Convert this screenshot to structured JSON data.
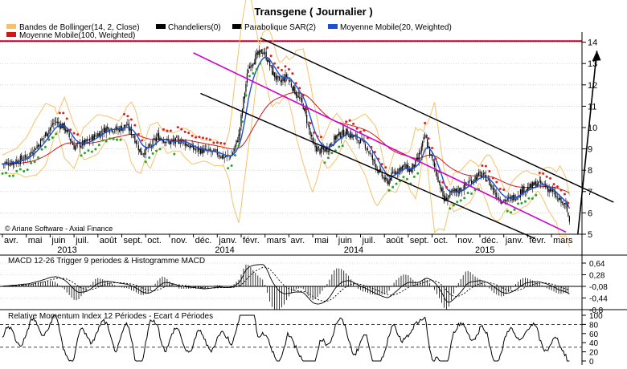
{
  "title": "Transgene  ( Journalier )",
  "copyright": "© Ariane Software - Axial Finance",
  "legend": [
    {
      "label": "Bandes de Bollinger(14, 2, Close)",
      "color": "#f5c26b"
    },
    {
      "label": "Chandeliers(0)",
      "color": "#000000"
    },
    {
      "label": "Parabolique SAR(2)",
      "color": "#000000"
    },
    {
      "label": "Moyenne Mobile(20, Weighted)",
      "color": "#1a4fd6"
    },
    {
      "label": "Moyenne Mobile(100, Weighted)",
      "color": "#d01818"
    }
  ],
  "colors": {
    "upper_band": "#f5c26b",
    "ma20": "#1a4fd6",
    "ma100": "#d01818",
    "sar_up": "#2aa22a",
    "sar_down": "#e02020",
    "trendline": "#000000",
    "midline": "#cc00cc",
    "resistance": "#c0002a"
  },
  "chart_data": [
    {
      "type": "candlestick",
      "name": "price",
      "y_ticks": [
        "14",
        "13",
        "12",
        "11",
        "10",
        "9",
        "8",
        "7",
        "6",
        "5"
      ],
      "ylim": [
        5,
        14
      ],
      "x_ticks": [
        "avr.",
        "mai",
        "juin",
        "juil.",
        "août",
        "sept.",
        "oct.",
        "nov.",
        "déc.",
        "janv.",
        "févr.",
        "mars",
        "avr.",
        "mai",
        "juin",
        "juil.",
        "août",
        "sept.",
        "oct.",
        "nov.",
        "déc.",
        "janv.",
        "févr.",
        "mars"
      ],
      "year_labels": [
        "2013",
        "2014",
        "2014",
        "2015"
      ],
      "close_path": [
        {
          "m": 0,
          "v": 8.3
        },
        {
          "m": 0.5,
          "v": 8.4
        },
        {
          "m": 1.0,
          "v": 8.6
        },
        {
          "m": 1.5,
          "v": 9.2
        },
        {
          "m": 2.2,
          "v": 10.3
        },
        {
          "m": 2.6,
          "v": 10.0
        },
        {
          "m": 3.0,
          "v": 9.1
        },
        {
          "m": 3.5,
          "v": 9.3
        },
        {
          "m": 4.0,
          "v": 9.7
        },
        {
          "m": 4.4,
          "v": 10.0
        },
        {
          "m": 4.8,
          "v": 9.9
        },
        {
          "m": 5.2,
          "v": 10.1
        },
        {
          "m": 5.5,
          "v": 9.6
        },
        {
          "m": 5.8,
          "v": 8.8
        },
        {
          "m": 6.2,
          "v": 9.1
        },
        {
          "m": 6.5,
          "v": 9.6
        },
        {
          "m": 7.0,
          "v": 9.3
        },
        {
          "m": 7.5,
          "v": 9.4
        },
        {
          "m": 8.0,
          "v": 9.0
        },
        {
          "m": 8.5,
          "v": 8.9
        },
        {
          "m": 9.0,
          "v": 8.8
        },
        {
          "m": 9.3,
          "v": 8.6
        },
        {
          "m": 9.6,
          "v": 8.7
        },
        {
          "m": 9.9,
          "v": 9.6
        },
        {
          "m": 10.1,
          "v": 11.3
        },
        {
          "m": 10.3,
          "v": 12.8
        },
        {
          "m": 10.6,
          "v": 13.3
        },
        {
          "m": 10.9,
          "v": 13.6
        },
        {
          "m": 11.1,
          "v": 13.2
        },
        {
          "m": 11.3,
          "v": 12.6
        },
        {
          "m": 11.6,
          "v": 12.1
        },
        {
          "m": 11.9,
          "v": 12.4
        },
        {
          "m": 12.2,
          "v": 11.8
        },
        {
          "m": 12.6,
          "v": 11.0
        },
        {
          "m": 13.0,
          "v": 9.2
        },
        {
          "m": 13.3,
          "v": 8.9
        },
        {
          "m": 13.6,
          "v": 9.0
        },
        {
          "m": 14.0,
          "v": 9.6
        },
        {
          "m": 14.4,
          "v": 9.8
        },
        {
          "m": 14.8,
          "v": 9.5
        },
        {
          "m": 15.2,
          "v": 9.2
        },
        {
          "m": 15.5,
          "v": 8.5
        },
        {
          "m": 15.8,
          "v": 7.9
        },
        {
          "m": 16.1,
          "v": 7.4
        },
        {
          "m": 16.4,
          "v": 7.9
        },
        {
          "m": 16.8,
          "v": 8.2
        },
        {
          "m": 17.1,
          "v": 8.0
        },
        {
          "m": 17.4,
          "v": 8.5
        },
        {
          "m": 17.7,
          "v": 9.6
        },
        {
          "m": 17.9,
          "v": 8.8
        },
        {
          "m": 18.2,
          "v": 7.8
        },
        {
          "m": 18.5,
          "v": 6.6
        },
        {
          "m": 18.8,
          "v": 6.9
        },
        {
          "m": 19.2,
          "v": 7.1
        },
        {
          "m": 19.6,
          "v": 7.5
        },
        {
          "m": 20.0,
          "v": 7.8
        },
        {
          "m": 20.3,
          "v": 7.6
        },
        {
          "m": 20.6,
          "v": 7.0
        },
        {
          "m": 20.9,
          "v": 6.6
        },
        {
          "m": 21.2,
          "v": 6.6
        },
        {
          "m": 21.5,
          "v": 6.8
        },
        {
          "m": 21.8,
          "v": 7.1
        },
        {
          "m": 22.1,
          "v": 7.2
        },
        {
          "m": 22.4,
          "v": 7.4
        },
        {
          "m": 22.7,
          "v": 7.3
        },
        {
          "m": 23.0,
          "v": 7.0
        },
        {
          "m": 23.3,
          "v": 6.6
        },
        {
          "m": 23.6,
          "v": 6.3
        },
        {
          "m": 23.75,
          "v": 5.6
        }
      ],
      "upper_channel": [
        {
          "m": 10.8,
          "v": 14.2
        },
        {
          "m": 25.6,
          "v": 6.5
        }
      ],
      "lower_channel": [
        {
          "m": 8.3,
          "v": 11.6
        },
        {
          "m": 22.3,
          "v": 4.8
        }
      ],
      "mid_channel": [
        {
          "m": 8.0,
          "v": 13.5
        },
        {
          "m": 23.6,
          "v": 5.1
        }
      ],
      "resistance": 14.05,
      "arrow": {
        "from": {
          "m": 24.1,
          "v": 5.0
        },
        "to": {
          "m": 24.9,
          "v": 13.6
        }
      }
    },
    {
      "type": "line",
      "name": "macd",
      "title": "MACD 12-26   Trigger 9 periodes & Histogramme MACD",
      "y_ticks": [
        "0,64",
        "0,28",
        "-0,08",
        "-0,44",
        "-0,8"
      ],
      "ylim": [
        -0.8,
        0.64
      ]
    },
    {
      "type": "line",
      "name": "rmi",
      "title": "Relative Momentum Index 12 Périodes - Ecart 4 Périodes",
      "y_ticks": [
        "100",
        "80",
        "60",
        "40",
        "20",
        "0"
      ],
      "ylim": [
        0,
        100
      ],
      "levels": [
        80,
        30
      ]
    }
  ]
}
